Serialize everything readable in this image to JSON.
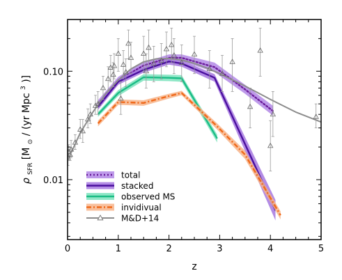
{
  "chart_data": {
    "type": "line",
    "xlabel": "z",
    "ylabel_parts": {
      "rho": "ρ",
      "rho_sub": "SFR",
      "prefix": " [M",
      "msun_sub": "⊙",
      "middle": " / (yr Mpc",
      "exp": "3",
      "suffix": ")]"
    },
    "xlim": [
      0,
      5
    ],
    "ylim": [
      0.0028,
      0.3
    ],
    "yscale": "log",
    "x_ticks": [
      0,
      1,
      2,
      3,
      4,
      5
    ],
    "x_tick_labels": [
      "0",
      "1",
      "2",
      "3",
      "4",
      "5"
    ],
    "y_ticks": [
      0.01,
      0.1
    ],
    "y_tick_labels": [
      "0.01",
      "0.10"
    ],
    "legend_position": "lower-left",
    "series": [
      {
        "name": "total",
        "style": "dotted-band",
        "color": "#6a1b9a",
        "band_color": "#b388e6",
        "x": [
          0.6,
          1.0,
          1.5,
          2.0,
          2.25,
          2.9,
          3.5,
          4.05
        ],
        "y": [
          0.05,
          0.083,
          0.113,
          0.133,
          0.133,
          0.109,
          0.068,
          0.043
        ],
        "lower": [
          0.046,
          0.078,
          0.106,
          0.124,
          0.124,
          0.098,
          0.062,
          0.039
        ],
        "upper": [
          0.054,
          0.089,
          0.121,
          0.143,
          0.143,
          0.12,
          0.075,
          0.048
        ]
      },
      {
        "name": "stacked",
        "style": "solid-band",
        "color": "#4a0f9e",
        "band_color": "#a678e0",
        "x": [
          0.6,
          1.0,
          1.5,
          2.0,
          2.25,
          2.9,
          4.1
        ],
        "y": [
          0.047,
          0.08,
          0.103,
          0.123,
          0.118,
          0.087,
          0.0052
        ],
        "lower": [
          0.044,
          0.075,
          0.097,
          0.115,
          0.11,
          0.08,
          0.0042
        ],
        "upper": [
          0.05,
          0.085,
          0.109,
          0.131,
          0.126,
          0.094,
          0.0065
        ]
      },
      {
        "name": "observed MS",
        "style": "solid-band",
        "color": "#1abc85",
        "band_color": "#7de3bd",
        "x": [
          0.6,
          1.0,
          1.5,
          2.0,
          2.25,
          2.95
        ],
        "y": [
          0.04,
          0.063,
          0.088,
          0.087,
          0.086,
          0.024
        ],
        "lower": [
          0.038,
          0.059,
          0.082,
          0.081,
          0.08,
          0.022
        ],
        "upper": [
          0.042,
          0.067,
          0.094,
          0.093,
          0.092,
          0.026
        ]
      },
      {
        "name": "invidivual",
        "style": "dashdot",
        "color": "#f0691a",
        "band_color": "#f7b48a",
        "x": [
          0.6,
          1.0,
          1.5,
          2.0,
          2.25,
          2.95,
          3.5,
          4.2
        ],
        "y": [
          0.033,
          0.052,
          0.051,
          0.059,
          0.063,
          0.031,
          0.017,
          0.0047
        ],
        "lower": [
          0.031,
          0.049,
          0.048,
          0.056,
          0.06,
          0.029,
          0.0155,
          0.0043
        ],
        "upper": [
          0.035,
          0.055,
          0.054,
          0.062,
          0.066,
          0.033,
          0.0185,
          0.0051
        ]
      },
      {
        "name": "M&D+14",
        "style": "solid-triangles",
        "color": "#8c8c8c",
        "band_color": "#cccccc",
        "x": [
          0.0,
          0.25,
          0.5,
          0.75,
          1.0,
          1.25,
          1.5,
          1.75,
          2.0,
          2.25,
          2.5,
          2.75,
          3.0,
          3.5,
          4.0,
          4.5,
          5.0
        ],
        "y": [
          0.015,
          0.027,
          0.042,
          0.062,
          0.083,
          0.105,
          0.122,
          0.13,
          0.131,
          0.127,
          0.118,
          0.107,
          0.095,
          0.073,
          0.055,
          0.042,
          0.034
        ]
      }
    ],
    "observations": [
      {
        "x": 0.01,
        "y": 0.016,
        "err_low": 0.0135,
        "err_high": 0.019
      },
      {
        "x": 0.02,
        "y": 0.018,
        "err_low": 0.015,
        "err_high": 0.021
      },
      {
        "x": 0.05,
        "y": 0.017,
        "err_low": 0.015,
        "err_high": 0.019
      },
      {
        "x": 0.07,
        "y": 0.019,
        "err_low": 0.016,
        "err_high": 0.023
      },
      {
        "x": 0.15,
        "y": 0.022,
        "err_low": 0.019,
        "err_high": 0.026
      },
      {
        "x": 0.25,
        "y": 0.029,
        "err_low": 0.024,
        "err_high": 0.036
      },
      {
        "x": 0.3,
        "y": 0.028,
        "err_low": 0.022,
        "err_high": 0.036
      },
      {
        "x": 0.4,
        "y": 0.036,
        "err_low": 0.03,
        "err_high": 0.045
      },
      {
        "x": 0.45,
        "y": 0.04,
        "err_low": 0.033,
        "err_high": 0.05
      },
      {
        "x": 0.55,
        "y": 0.048,
        "err_low": 0.04,
        "err_high": 0.06
      },
      {
        "x": 0.6,
        "y": 0.05,
        "err_low": 0.04,
        "err_high": 0.065
      },
      {
        "x": 0.7,
        "y": 0.07,
        "err_low": 0.055,
        "err_high": 0.09
      },
      {
        "x": 0.8,
        "y": 0.085,
        "err_low": 0.065,
        "err_high": 0.11
      },
      {
        "x": 0.85,
        "y": 0.108,
        "err_low": 0.08,
        "err_high": 0.14
      },
      {
        "x": 0.9,
        "y": 0.093,
        "err_low": 0.072,
        "err_high": 0.12
      },
      {
        "x": 0.92,
        "y": 0.112,
        "err_low": 0.085,
        "err_high": 0.145
      },
      {
        "x": 1.0,
        "y": 0.145,
        "err_low": 0.1,
        "err_high": 0.2
      },
      {
        "x": 1.05,
        "y": 0.056,
        "err_low": 0.04,
        "err_high": 0.08
      },
      {
        "x": 1.1,
        "y": 0.115,
        "err_low": 0.085,
        "err_high": 0.155
      },
      {
        "x": 1.15,
        "y": 0.098,
        "err_low": 0.072,
        "err_high": 0.13
      },
      {
        "x": 1.2,
        "y": 0.18,
        "err_low": 0.13,
        "err_high": 0.24
      },
      {
        "x": 1.25,
        "y": 0.133,
        "err_low": 0.095,
        "err_high": 0.185
      },
      {
        "x": 1.5,
        "y": 0.145,
        "err_low": 0.1,
        "err_high": 0.21
      },
      {
        "x": 1.55,
        "y": 0.1,
        "err_low": 0.07,
        "err_high": 0.145
      },
      {
        "x": 1.6,
        "y": 0.165,
        "err_low": 0.11,
        "err_high": 0.24
      },
      {
        "x": 1.7,
        "y": 0.118,
        "err_low": 0.08,
        "err_high": 0.17
      },
      {
        "x": 1.85,
        "y": 0.125,
        "err_low": 0.085,
        "err_high": 0.18
      },
      {
        "x": 1.95,
        "y": 0.16,
        "err_low": 0.11,
        "err_high": 0.23
      },
      {
        "x": 2.05,
        "y": 0.175,
        "err_low": 0.12,
        "err_high": 0.25
      },
      {
        "x": 2.1,
        "y": 0.14,
        "err_low": 0.095,
        "err_high": 0.2
      },
      {
        "x": 2.25,
        "y": 0.12,
        "err_low": 0.08,
        "err_high": 0.175
      },
      {
        "x": 2.5,
        "y": 0.143,
        "err_low": 0.095,
        "err_high": 0.21
      },
      {
        "x": 2.8,
        "y": 0.105,
        "err_low": 0.07,
        "err_high": 0.155
      },
      {
        "x": 3.05,
        "y": 0.095,
        "err_low": 0.065,
        "err_high": 0.14
      },
      {
        "x": 3.25,
        "y": 0.122,
        "err_low": 0.065,
        "err_high": 0.2
      },
      {
        "x": 3.6,
        "y": 0.047,
        "err_low": 0.03,
        "err_high": 0.07
      },
      {
        "x": 3.8,
        "y": 0.155,
        "err_low": 0.09,
        "err_high": 0.25
      },
      {
        "x": 4.0,
        "y": 0.0205,
        "err_low": 0.012,
        "err_high": 0.035
      },
      {
        "x": 4.05,
        "y": 0.04,
        "err_low": 0.025,
        "err_high": 0.065
      },
      {
        "x": 4.9,
        "y": 0.038,
        "err_low": 0.03,
        "err_high": 0.05
      }
    ]
  }
}
